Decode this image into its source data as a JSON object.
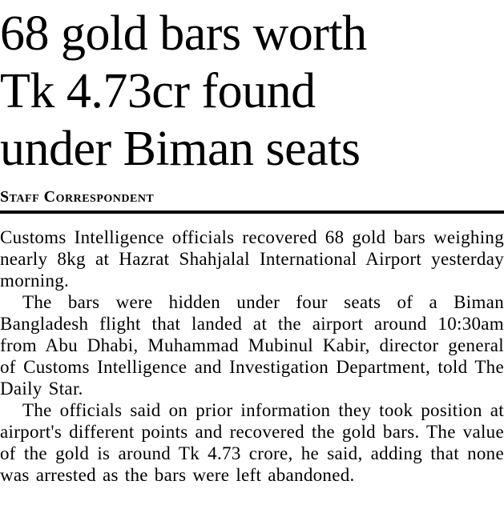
{
  "article": {
    "headline": "68 gold bars worth Tk 4.73cr found under Biman seats",
    "headline_lines": [
      "68 gold bars worth",
      "Tk 4.73cr found",
      "under Biman seats"
    ],
    "byline": "Staff Correspondent",
    "paragraphs": [
      "Customs Intelligence officials recovered 68 gold bars weighing nearly 8kg at Hazrat Shahjalal International Airport yesterday morning.",
      "The bars were hidden under four seats of a Biman Bangladesh flight that landed at the airport around 10:30am from Abu Dhabi, Muhammad Mubinul Kabir, director general of Customs Intelligence and Investigation Department, told The Daily Star.",
      "The officials said on prior information they took position at airport's different points and recovered the gold bars. The value of the gold is around Tk 4.73 crore, he said, adding that none was arrested as the bars were left abandoned."
    ],
    "colors": {
      "text": "#000000",
      "background": "#ffffff",
      "rule": "#000000"
    }
  }
}
